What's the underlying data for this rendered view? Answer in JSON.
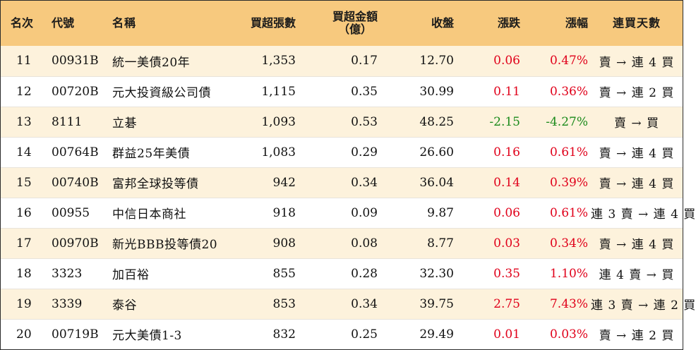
{
  "colors": {
    "header_bg": "#f7c97e",
    "row_alt_bg": "#fdf2dc",
    "up": "#e0001a",
    "down": "#1a8a1a"
  },
  "headers": {
    "rank": "名次",
    "code": "代號",
    "name": "名稱",
    "volume": "買超張數",
    "amount_line1": "買超金額",
    "amount_line2": "（億）",
    "close": "收盤",
    "change": "漲跌",
    "pct": "漲幅",
    "days": "連買天數"
  },
  "rows": [
    {
      "rank": "11",
      "code": "00931B",
      "name": "統一美債20年",
      "volume": "1,353",
      "amount": "0.17",
      "close": "12.70",
      "change": "0.06",
      "pct": "0.47%",
      "days": "賣 → 連 4 買",
      "dir": "up"
    },
    {
      "rank": "12",
      "code": "00720B",
      "name": "元大投資級公司債",
      "volume": "1,115",
      "amount": "0.35",
      "close": "30.99",
      "change": "0.11",
      "pct": "0.36%",
      "days": "賣 → 連 2 買",
      "dir": "up"
    },
    {
      "rank": "13",
      "code": "8111",
      "name": "立碁",
      "volume": "1,093",
      "amount": "0.53",
      "close": "48.25",
      "change": "-2.15",
      "pct": "-4.27%",
      "days": "賣 → 買",
      "dir": "down"
    },
    {
      "rank": "14",
      "code": "00764B",
      "name": "群益25年美債",
      "volume": "1,083",
      "amount": "0.29",
      "close": "26.60",
      "change": "0.16",
      "pct": "0.61%",
      "days": "賣 → 連 4 買",
      "dir": "up"
    },
    {
      "rank": "15",
      "code": "00740B",
      "name": "富邦全球投等債",
      "volume": "942",
      "amount": "0.34",
      "close": "36.04",
      "change": "0.14",
      "pct": "0.39%",
      "days": "賣 → 連 4 買",
      "dir": "up"
    },
    {
      "rank": "16",
      "code": "00955",
      "name": "中信日本商社",
      "volume": "918",
      "amount": "0.09",
      "close": "9.87",
      "change": "0.06",
      "pct": "0.61%",
      "days": "連 3 賣 → 連 4 買",
      "dir": "up"
    },
    {
      "rank": "17",
      "code": "00970B",
      "name": "新光BBB投等債20",
      "volume": "908",
      "amount": "0.08",
      "close": "8.77",
      "change": "0.03",
      "pct": "0.34%",
      "days": "賣 → 連 4 買",
      "dir": "up"
    },
    {
      "rank": "18",
      "code": "3323",
      "name": "加百裕",
      "volume": "855",
      "amount": "0.28",
      "close": "32.30",
      "change": "0.35",
      "pct": "1.10%",
      "days": "連 4 賣 → 買",
      "dir": "up"
    },
    {
      "rank": "19",
      "code": "3339",
      "name": "泰谷",
      "volume": "853",
      "amount": "0.34",
      "close": "39.75",
      "change": "2.75",
      "pct": "7.43%",
      "days": "連 3 賣 → 連 2 買",
      "dir": "up"
    },
    {
      "rank": "20",
      "code": "00719B",
      "name": "元大美債1-3",
      "volume": "832",
      "amount": "0.25",
      "close": "29.49",
      "change": "0.01",
      "pct": "0.03%",
      "days": "賣 → 連 2 買",
      "dir": "up"
    }
  ]
}
